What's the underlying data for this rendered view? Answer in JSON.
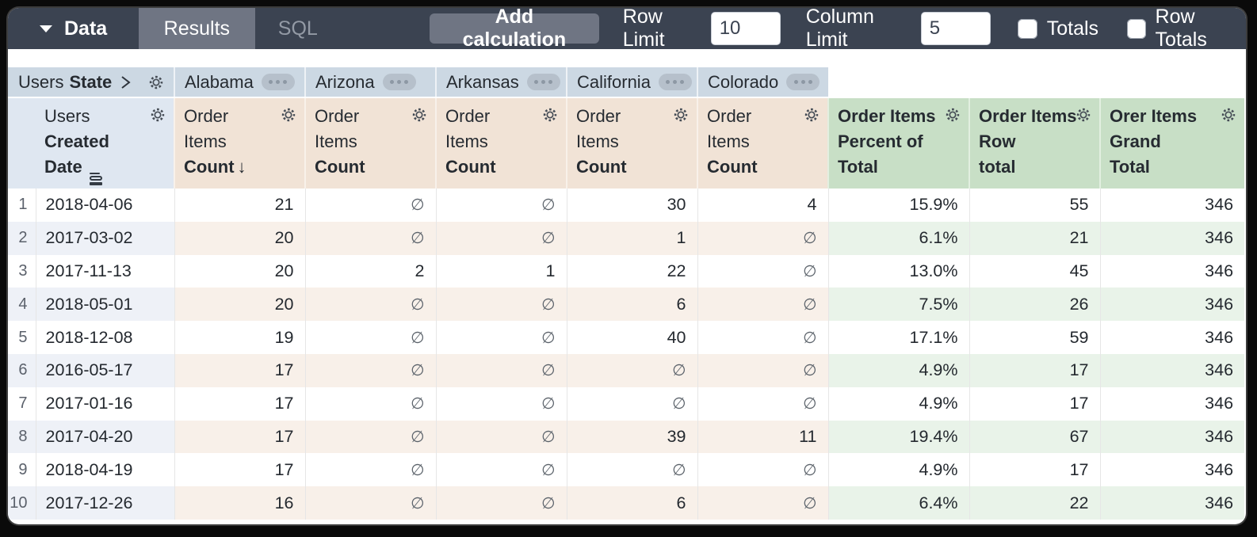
{
  "toolbar": {
    "data_menu": "Data",
    "tabs": {
      "results": "Results",
      "sql": "SQL"
    },
    "add_calculation": "Add calculation",
    "row_limit": {
      "label": "Row Limit",
      "value": "10"
    },
    "column_limit": {
      "label": "Column Limit",
      "value": "5"
    },
    "totals": {
      "label": "Totals",
      "checked": false
    },
    "row_totals": {
      "label": "Row Totals",
      "checked": false
    }
  },
  "pivot": {
    "dimension_prefix": "Users",
    "dimension_field": "State",
    "values": [
      "Alabama",
      "Arizona",
      "Arkansas",
      "California",
      "Colorado"
    ]
  },
  "headers": {
    "row_dimension": {
      "line1": "Users",
      "line2": "Created",
      "line3": "Date"
    },
    "measure": {
      "line1": "Order",
      "line2": "Items",
      "line3": "Count"
    },
    "sort_arrow": "↓",
    "calcs": [
      {
        "line1": "Order Items",
        "line2": "Percent of",
        "line3": "Total"
      },
      {
        "line1": "Order Items",
        "line2": "Row",
        "line3": "total"
      },
      {
        "line1": "Orer Items",
        "line2": "Grand",
        "line3": "Total"
      }
    ]
  },
  "table": {
    "null_symbol": "∅",
    "rows": [
      {
        "index": "1",
        "date": "2018-04-06",
        "states": [
          "21",
          "∅",
          "∅",
          "30",
          "4"
        ],
        "percent_of_total": "15.9%",
        "row_total": "55",
        "grand_total": "346"
      },
      {
        "index": "2",
        "date": "2017-03-02",
        "states": [
          "20",
          "∅",
          "∅",
          "1",
          "∅"
        ],
        "percent_of_total": "6.1%",
        "row_total": "21",
        "grand_total": "346"
      },
      {
        "index": "3",
        "date": "2017-11-13",
        "states": [
          "20",
          "2",
          "1",
          "22",
          "∅"
        ],
        "percent_of_total": "13.0%",
        "row_total": "45",
        "grand_total": "346"
      },
      {
        "index": "4",
        "date": "2018-05-01",
        "states": [
          "20",
          "∅",
          "∅",
          "6",
          "∅"
        ],
        "percent_of_total": "7.5%",
        "row_total": "26",
        "grand_total": "346"
      },
      {
        "index": "5",
        "date": "2018-12-08",
        "states": [
          "19",
          "∅",
          "∅",
          "40",
          "∅"
        ],
        "percent_of_total": "17.1%",
        "row_total": "59",
        "grand_total": "346"
      },
      {
        "index": "6",
        "date": "2016-05-17",
        "states": [
          "17",
          "∅",
          "∅",
          "∅",
          "∅"
        ],
        "percent_of_total": "4.9%",
        "row_total": "17",
        "grand_total": "346"
      },
      {
        "index": "7",
        "date": "2017-01-16",
        "states": [
          "17",
          "∅",
          "∅",
          "∅",
          "∅"
        ],
        "percent_of_total": "4.9%",
        "row_total": "17",
        "grand_total": "346"
      },
      {
        "index": "8",
        "date": "2017-04-20",
        "states": [
          "17",
          "∅",
          "∅",
          "39",
          "11"
        ],
        "percent_of_total": "19.4%",
        "row_total": "67",
        "grand_total": "346"
      },
      {
        "index": "9",
        "date": "2018-04-19",
        "states": [
          "17",
          "∅",
          "∅",
          "∅",
          "∅"
        ],
        "percent_of_total": "4.9%",
        "row_total": "17",
        "grand_total": "346"
      },
      {
        "index": "10",
        "date": "2017-12-26",
        "states": [
          "16",
          "∅",
          "∅",
          "6",
          "∅"
        ],
        "percent_of_total": "6.4%",
        "row_total": "22",
        "grand_total": "346"
      }
    ]
  },
  "colors": {
    "topbar": "#3b4351",
    "tab_active": "#6f7583",
    "pivot_header": "#ccd8e3",
    "dimension_header": "#dfe7f1",
    "measure_header": "#f1e3d6",
    "calc_header": "#c8dfc6",
    "row_alt_left": "#eef1f7",
    "row_alt_state": "#f8f0e9",
    "row_alt_calc": "#e9f3e9"
  }
}
